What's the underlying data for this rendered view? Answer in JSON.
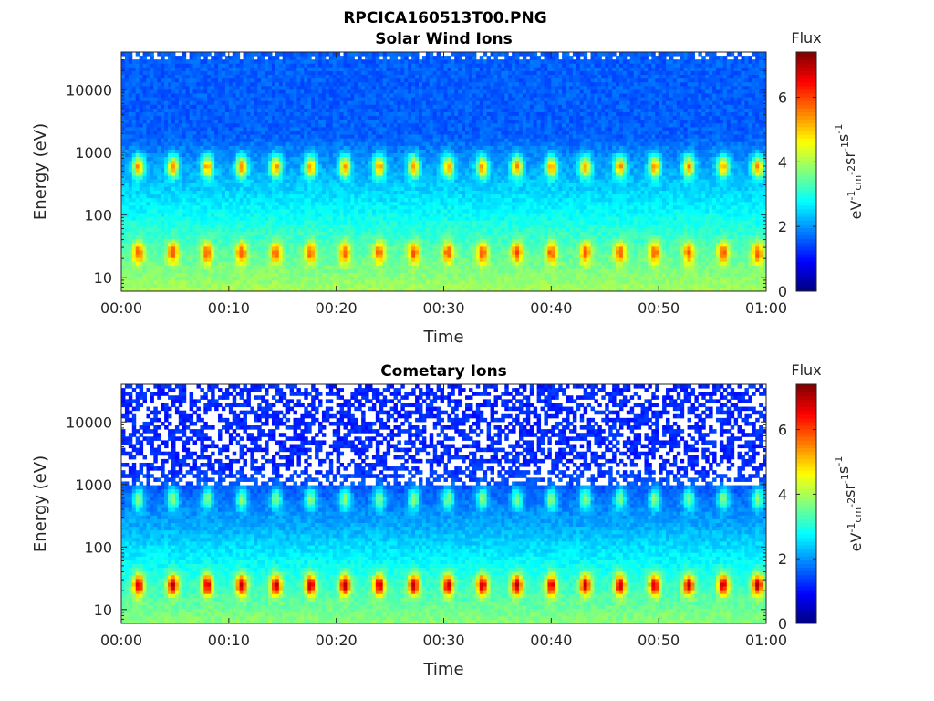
{
  "figure": {
    "title": "RPCICA160513T00.PNG"
  },
  "chart_data": [
    {
      "type": "heatmap",
      "title": "Solar Wind Ions",
      "xlabel": "Time",
      "ylabel": "Energy (eV)",
      "x_ticks": [
        "00:00",
        "00:10",
        "00:20",
        "00:30",
        "00:40",
        "00:50",
        "01:00"
      ],
      "x_range_minutes": [
        0,
        60
      ],
      "y_scale": "log",
      "y_range": [
        6,
        40000
      ],
      "y_ticks": [
        10,
        100,
        1000,
        10000
      ],
      "y_tick_labels": [
        "10",
        "100",
        "1000",
        "10000"
      ],
      "colorbar": {
        "label": "Flux",
        "unit_base": "eV",
        "unit_parts": [
          [
            "-1",
            "cm",
            "-2"
          ],
          [
            "sr",
            "-1"
          ],
          [
            "s",
            "-1"
          ]
        ],
        "range": [
          0,
          7.4
        ],
        "ticks": [
          0,
          2,
          4,
          6
        ],
        "tick_labels": [
          "0",
          "2",
          "4",
          "6"
        ],
        "colormap": "jet"
      },
      "features": {
        "background_level": 1.6,
        "low_energy_level": 4.0,
        "sweep_bands": [
          {
            "energy_eV": 600,
            "peak_flux": 4.8,
            "period_min": 3.2
          },
          {
            "energy_eV": 25,
            "peak_flux": 4.9,
            "period_min": 3.2
          }
        ],
        "sparse_above_eV": 30000
      }
    },
    {
      "type": "heatmap",
      "title": "Cometary Ions",
      "xlabel": "Time",
      "ylabel": "Energy (eV)",
      "x_ticks": [
        "00:00",
        "00:10",
        "00:20",
        "00:30",
        "00:40",
        "00:50",
        "01:00"
      ],
      "x_range_minutes": [
        0,
        60
      ],
      "y_scale": "log",
      "y_range": [
        6,
        40000
      ],
      "y_ticks": [
        10,
        100,
        1000,
        10000
      ],
      "y_tick_labels": [
        "10",
        "100",
        "1000",
        "10000"
      ],
      "colorbar": {
        "label": "Flux",
        "unit_base": "eV",
        "unit_parts": [
          [
            "-1",
            "cm",
            "-2"
          ],
          [
            "sr",
            "-1"
          ],
          [
            "s",
            "-1"
          ]
        ],
        "range": [
          0,
          7.4
        ],
        "ticks": [
          0,
          2,
          4,
          6
        ],
        "tick_labels": [
          "0",
          "2",
          "4",
          "6"
        ],
        "colormap": "jet"
      },
      "features": {
        "background_level": 1.2,
        "low_energy_level": 3.8,
        "sweep_bands": [
          {
            "energy_eV": 600,
            "peak_flux": 3.3,
            "period_min": 3.2
          },
          {
            "energy_eV": 25,
            "peak_flux": 6.0,
            "period_min": 3.2
          }
        ],
        "sparse_above_eV": 1000
      }
    }
  ]
}
